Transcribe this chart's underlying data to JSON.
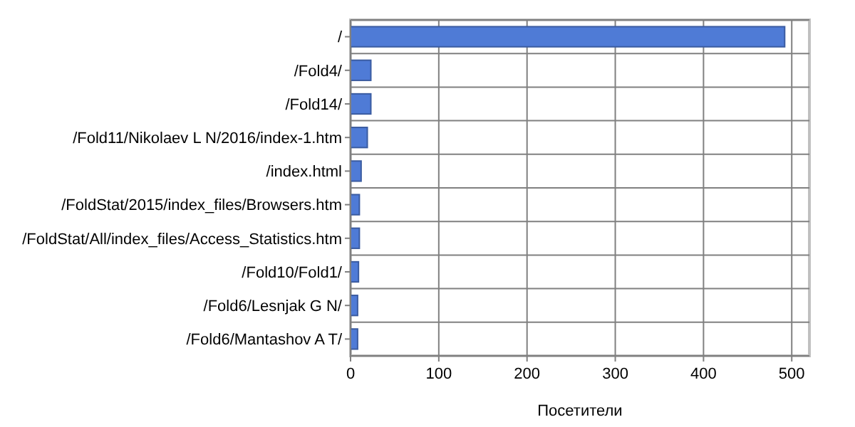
{
  "chart_data": {
    "type": "bar",
    "orientation": "horizontal",
    "xlabel": "Посетители",
    "categories": [
      "/",
      "/Fold4/",
      "/Fold14/",
      "/Fold11/Nikolaev L N/2016/index-1.htm",
      "/index.html",
      "/FoldStat/2015/index_files/Browsers.htm",
      "/FoldStat/All/index_files/Access_Statistics.htm",
      "/Fold10/Fold1/",
      "/Fold6/Lesnjak G N/",
      "/Fold6/Mantashov A T/"
    ],
    "values": [
      492,
      23,
      23,
      19,
      12,
      10,
      10,
      9,
      8,
      8
    ],
    "color": "#4f7bd6",
    "xlim": [
      0,
      520
    ],
    "xticks": [
      0,
      100,
      200,
      300,
      400,
      500
    ],
    "grid": true
  }
}
